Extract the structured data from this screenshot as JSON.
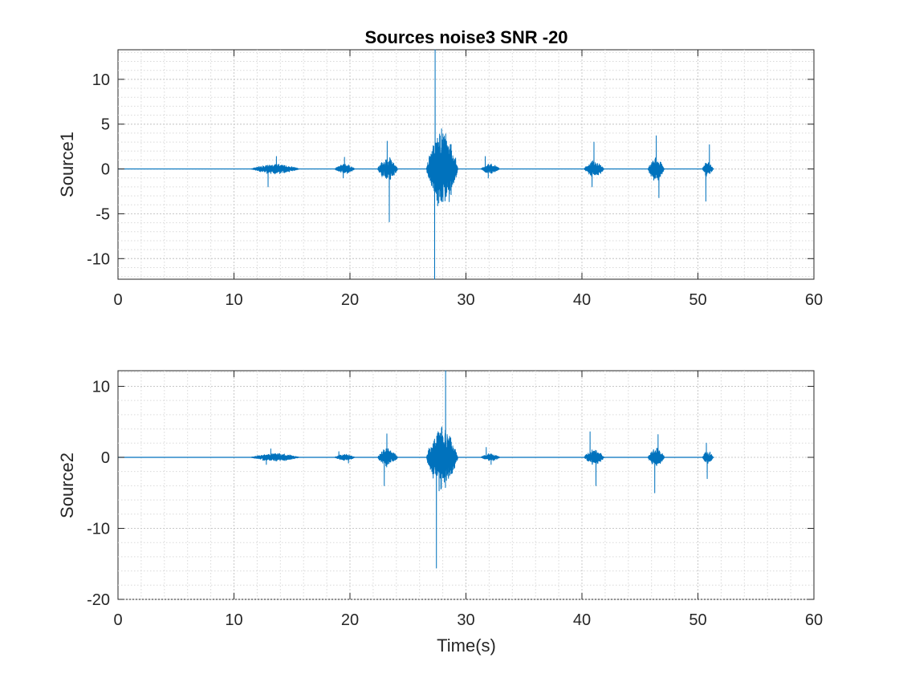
{
  "chart_data": [
    {
      "type": "line",
      "title": "Sources noise3 SNR -20",
      "xlabel": "",
      "ylabel": "Source1",
      "xlim": [
        0,
        60
      ],
      "ylim": [
        -12.3,
        13.3
      ],
      "xticks": [
        "0",
        "10",
        "20",
        "30",
        "40",
        "50",
        "60"
      ],
      "yticks": [
        "-10",
        "-5",
        "0",
        "5",
        "10"
      ],
      "grid": true,
      "minor_grid": true,
      "color": "#0072BD",
      "bursts": [
        {
          "start": 11.5,
          "end": 15.6,
          "max": 1.4,
          "min": -2.0,
          "typical": 0.6
        },
        {
          "start": 18.7,
          "end": 20.4,
          "max": 1.3,
          "min": -1.0,
          "typical": 0.6
        },
        {
          "start": 22.4,
          "end": 24.1,
          "max": 3.1,
          "min": -5.9,
          "typical": 1.5
        },
        {
          "start": 26.6,
          "end": 29.3,
          "max": 13.3,
          "min": -12.3,
          "typical": 5.0
        },
        {
          "start": 31.3,
          "end": 32.9,
          "max": 1.4,
          "min": -1.0,
          "typical": 0.6
        },
        {
          "start": 40.2,
          "end": 41.9,
          "max": 3.0,
          "min": -2.0,
          "typical": 1.0
        },
        {
          "start": 45.7,
          "end": 47.1,
          "max": 3.7,
          "min": -3.2,
          "typical": 1.5
        },
        {
          "start": 50.4,
          "end": 51.3,
          "max": 2.7,
          "min": -3.6,
          "typical": 1.0
        }
      ]
    },
    {
      "type": "line",
      "title": "",
      "xlabel": "Time(s)",
      "ylabel": "Source2",
      "xlim": [
        0,
        60
      ],
      "ylim": [
        -20,
        12.2
      ],
      "xticks": [
        "0",
        "10",
        "20",
        "30",
        "40",
        "50",
        "60"
      ],
      "yticks": [
        "-20",
        "-10",
        "0",
        "10"
      ],
      "grid": true,
      "minor_grid": true,
      "color": "#0072BD",
      "bursts": [
        {
          "start": 11.5,
          "end": 15.6,
          "max": 1.2,
          "min": -1.0,
          "typical": 0.6
        },
        {
          "start": 18.7,
          "end": 20.4,
          "max": 0.8,
          "min": -0.8,
          "typical": 0.5
        },
        {
          "start": 22.4,
          "end": 24.1,
          "max": 3.3,
          "min": -4.0,
          "typical": 1.5
        },
        {
          "start": 26.6,
          "end": 29.3,
          "max": 12.2,
          "min": -15.6,
          "typical": 5.0
        },
        {
          "start": 31.3,
          "end": 32.9,
          "max": 1.4,
          "min": -1.0,
          "typical": 0.6
        },
        {
          "start": 40.2,
          "end": 41.9,
          "max": 3.6,
          "min": -4.0,
          "typical": 1.2
        },
        {
          "start": 45.7,
          "end": 47.1,
          "max": 3.2,
          "min": -5.0,
          "typical": 1.5
        },
        {
          "start": 50.4,
          "end": 51.3,
          "max": 2.0,
          "min": -3.0,
          "typical": 1.0
        }
      ]
    }
  ]
}
